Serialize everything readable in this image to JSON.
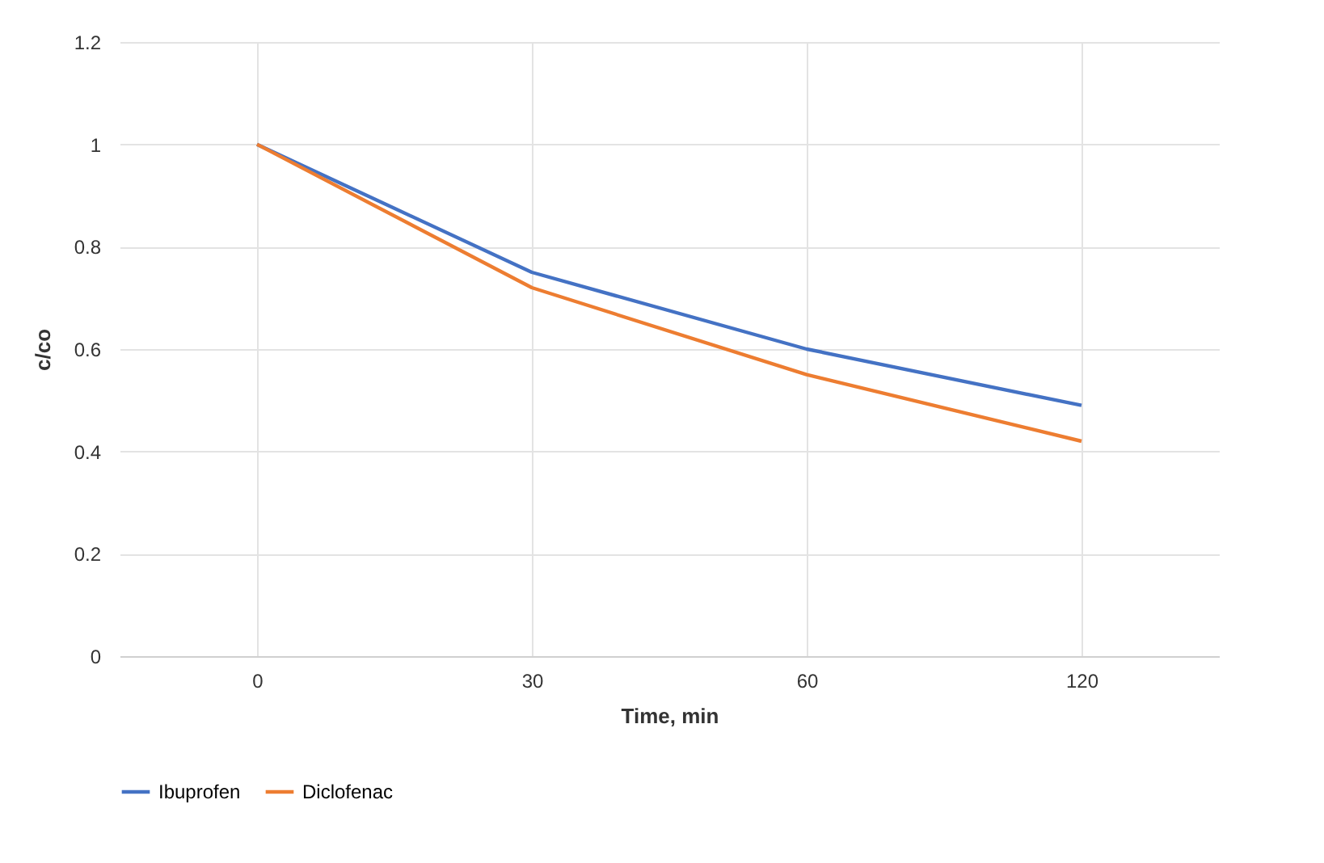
{
  "chart_data": {
    "type": "line",
    "xlabel": "Time, min",
    "ylabel": "c/co",
    "categories": [
      "0",
      "30",
      "60",
      "120"
    ],
    "series": [
      {
        "name": "Ibuprofen",
        "color": "#4472c4",
        "values": [
          1,
          0.75,
          0.6,
          0.49
        ]
      },
      {
        "name": "Diclofenac",
        "color": "#ed7d31",
        "values": [
          1,
          0.72,
          0.55,
          0.42
        ]
      }
    ],
    "ylim": [
      0,
      1.2
    ],
    "yticks": [
      0,
      0.2,
      0.4,
      0.6,
      0.8,
      1,
      1.2
    ],
    "grid": true,
    "legend": "bottom",
    "marker": "none",
    "line_style": "solid"
  }
}
